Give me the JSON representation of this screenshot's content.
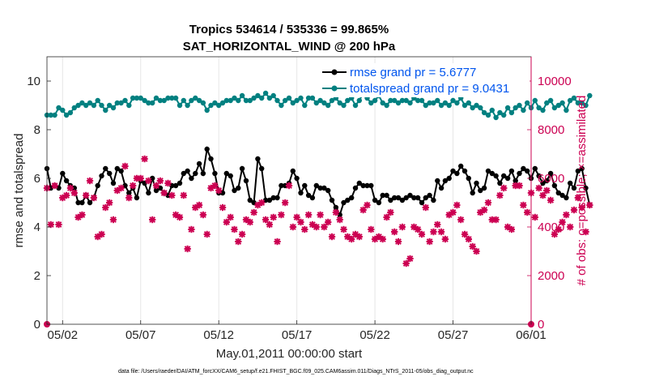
{
  "chart_data": {
    "type": "line",
    "title_line1": "Tropics 534614 / 535336 = 99.865%",
    "title_line2": "SAT_HORIZONTAL_WIND @ 200 hPa",
    "xlabel": "May.01,2011 00:00:00 start",
    "ylabel_left": "rmse and totalspread",
    "ylabel_right": "# of obs: o=possible; ×=assimilated",
    "footnote": "data file: /Users/raeder/DAI/ATM_forcXX/CAM6_setup/f.e21.FHIST_BGC.f09_025.CAM6assim.011/Diags_NTrS_2011-05/obs_diag_output.nc",
    "x_ticks": [
      "05/02",
      "05/07",
      "05/12",
      "05/17",
      "05/22",
      "05/27",
      "06/01"
    ],
    "x_tick_days": [
      1,
      6,
      11,
      16,
      21,
      26,
      31
    ],
    "xlim_days": [
      0,
      31
    ],
    "ylim_left": [
      0,
      11
    ],
    "yticks_left": [
      "0",
      "2",
      "4",
      "6",
      "8",
      "10"
    ],
    "ylim_right": [
      0,
      11000
    ],
    "yticks_right": [
      "0",
      "2000",
      "4000",
      "6000",
      "8000",
      "10000"
    ],
    "series": [
      {
        "name": "rmse",
        "legend": "rmse grand pr = 5.6777",
        "color": "#000000",
        "marker": "circle",
        "axis": "left",
        "x_step_days": 0.25,
        "values": [
          6.4,
          5.6,
          5.7,
          5.6,
          6.2,
          5.9,
          5.7,
          5.6,
          5.0,
          5.0,
          5.3,
          5.0,
          5.2,
          5.7,
          6.1,
          6.4,
          6.2,
          5.8,
          6.4,
          6.3,
          5.7,
          5.4,
          5.6,
          5.2,
          5.9,
          5.8,
          5.4,
          6.0,
          5.5,
          5.6,
          5.4,
          5.3,
          5.7,
          5.7,
          5.8,
          6.2,
          6.3,
          6.0,
          6.2,
          6.6,
          6.2,
          7.2,
          6.8,
          6.2,
          5.4,
          5.4,
          6.2,
          6.1,
          5.5,
          5.6,
          6.4,
          5.9,
          5.1,
          5.0,
          6.8,
          6.4,
          5.1,
          5.1,
          5.2,
          5.2,
          5.7,
          5.7,
          5.8,
          6.3,
          6.0,
          5.4,
          5.7,
          5.3,
          5.2,
          5.7,
          5.6,
          5.6,
          5.5,
          5.1,
          4.8,
          4.5,
          5.0,
          5.1,
          5.2,
          5.6,
          5.8,
          5.7,
          5.7,
          5.7,
          5.1,
          5.0,
          5.3,
          5.3,
          5.1,
          5.2,
          5.2,
          5.1,
          5.2,
          5.3,
          5.2,
          5.2,
          5.0,
          5.2,
          5.3,
          5.1,
          5.9,
          5.6,
          5.9,
          6.0,
          6.3,
          6.2,
          6.5,
          6.3,
          6.0,
          5.4,
          5.8,
          5.5,
          5.6,
          6.3,
          6.2,
          6.1,
          5.8,
          6.1,
          6.0,
          6.3,
          5.9,
          6.2,
          6.4,
          6.3,
          6.0,
          6.4,
          6.1,
          5.8,
          5.9,
          6.2,
          5.7,
          5.4,
          5.3,
          5.2,
          5.8,
          5.6,
          6.3,
          6.4,
          5.6,
          4.9
        ]
      },
      {
        "name": "totalspread",
        "legend": "totalspread grand pr = 9.0431",
        "color": "#008080",
        "marker": "circle",
        "axis": "left",
        "x_step_days": 0.25,
        "values": [
          8.6,
          8.6,
          8.6,
          8.9,
          8.8,
          8.6,
          8.7,
          8.9,
          9.0,
          9.1,
          9.0,
          9.1,
          9.0,
          9.2,
          9.0,
          8.8,
          9.0,
          8.9,
          9.1,
          9.1,
          9.2,
          9.0,
          9.3,
          9.3,
          9.3,
          9.2,
          9.1,
          9.1,
          9.3,
          9.2,
          9.2,
          9.3,
          9.3,
          9.3,
          9.0,
          9.2,
          9.0,
          9.2,
          9.3,
          9.2,
          9.1,
          8.8,
          9.0,
          9.1,
          9.0,
          9.1,
          9.2,
          9.2,
          9.3,
          9.2,
          9.4,
          9.2,
          9.2,
          9.3,
          9.4,
          9.3,
          9.5,
          9.3,
          9.4,
          9.2,
          9.0,
          9.2,
          9.3,
          9.1,
          9.2,
          9.3,
          9.0,
          9.3,
          9.3,
          9.1,
          9.2,
          9.1,
          9.0,
          9.2,
          9.3,
          9.1,
          9.0,
          9.2,
          9.3,
          9.0,
          9.2,
          9.5,
          9.3,
          9.1,
          9.2,
          9.4,
          9.1,
          9.0,
          9.2,
          9.2,
          9.1,
          9.2,
          9.2,
          9.1,
          9.3,
          9.2,
          9.2,
          9.0,
          9.1,
          9.1,
          9.2,
          9.0,
          9.1,
          9.0,
          9.2,
          9.1,
          9.3,
          9.0,
          9.1,
          8.9,
          9.0,
          8.9,
          8.7,
          8.6,
          8.8,
          8.5,
          8.7,
          8.6,
          8.9,
          8.7,
          8.9,
          9.0,
          8.8,
          9.1,
          8.9,
          9.2,
          8.9,
          8.8,
          9.1,
          9.2,
          8.9,
          9.0,
          9.1,
          8.8,
          9.2,
          9.3,
          9.1,
          9.1,
          9.0,
          9.4
        ]
      },
      {
        "name": "obs_possible",
        "marker": "circle",
        "color": "#cc0052",
        "axis": "right",
        "x": [
          0,
          31
        ],
        "values": [
          0,
          0
        ]
      },
      {
        "name": "obs_assimilated",
        "marker": "x",
        "color": "#cc0052",
        "axis": "right",
        "x_step_days": 0.25,
        "values": [
          5600,
          4100,
          5700,
          4100,
          5200,
          5300,
          5600,
          5400,
          4400,
          4500,
          5300,
          5900,
          5200,
          3600,
          3700,
          4800,
          5000,
          4300,
          5500,
          5600,
          6500,
          5200,
          5700,
          6000,
          6000,
          6800,
          5900,
          4300,
          5700,
          5900,
          5400,
          5800,
          5300,
          4500,
          4400,
          5300,
          3100,
          3900,
          4800,
          4900,
          4500,
          3700,
          5600,
          5700,
          5500,
          4800,
          4200,
          4400,
          3900,
          3400,
          3700,
          4300,
          4200,
          4600,
          4900,
          5000,
          4300,
          4100,
          4400,
          3400,
          4500,
          5000,
          5700,
          4000,
          4400,
          4200,
          3900,
          4500,
          4100,
          4000,
          4500,
          4000,
          4200,
          3600,
          4600,
          4300,
          3900,
          3600,
          3500,
          3700,
          3600,
          4700,
          4900,
          3900,
          3500,
          3600,
          3500,
          4400,
          4600,
          3800,
          3400,
          4000,
          2500,
          2700,
          4000,
          3900,
          3700,
          4800,
          3400,
          3800,
          4100,
          3800,
          3500,
          4500,
          4600,
          4900,
          4300,
          3700,
          3500,
          3200,
          3000,
          4600,
          4700,
          5000,
          4300,
          4300,
          5300,
          5600,
          4000,
          3900,
          5700,
          5700,
          4900,
          4600,
          5400,
          4400,
          5600,
          5300,
          5500,
          5100,
          3700,
          3900,
          4200,
          4500,
          4000,
          4700,
          5200,
          4800,
          3800,
          4900
        ]
      }
    ]
  }
}
